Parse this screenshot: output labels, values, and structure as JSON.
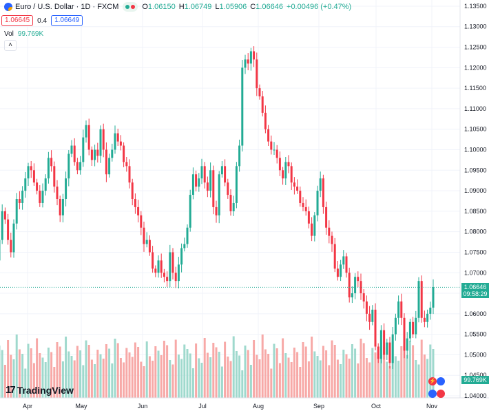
{
  "header": {
    "symbol": "Euro / U.S. Dollar · 1D · FXCM",
    "open_label": "O",
    "open": "1.06150",
    "high_label": "H",
    "high": "1.06749",
    "low_label": "L",
    "low": "1.05906",
    "close_label": "C",
    "close": "1.06646",
    "change": "+0.00496 (+0.47%)",
    "sell_price": "1.06645",
    "spread": "0.4",
    "buy_price": "1.06649"
  },
  "volume": {
    "label": "Vol",
    "value": "99.769K"
  },
  "price_tag": {
    "price": "1.06646",
    "countdown": "09:58:29"
  },
  "volume_tag": "99.769K",
  "logo": {
    "text": "TradingView"
  },
  "colors": {
    "up": "#22ab94",
    "down": "#f23645",
    "vol_up": "#9fd9cd",
    "vol_down": "#f7a9a7",
    "grid": "#f0f3fa",
    "axis_text": "#131722",
    "last_line": "#22ab94"
  },
  "chart_data": {
    "type": "candlestick",
    "x_axis_ticks": [
      "Apr",
      "May",
      "Jun",
      "Jul",
      "Aug",
      "Sep",
      "Oct",
      "Nov"
    ],
    "y_axis_ticks": [
      "1.13500",
      "1.13000",
      "1.12500",
      "1.12000",
      "1.11500",
      "1.11000",
      "1.10500",
      "1.10000",
      "1.09500",
      "1.09000",
      "1.08500",
      "1.08000",
      "1.07500",
      "1.07000",
      "1.06500",
      "1.06000",
      "1.05500",
      "1.05000",
      "1.04500",
      "1.04000"
    ],
    "ylim": [
      1.0395,
      1.1365
    ],
    "closes": [
      1.073,
      1.078,
      1.085,
      1.083,
      1.078,
      1.075,
      1.082,
      1.088,
      1.087,
      1.09,
      1.093,
      1.096,
      1.095,
      1.092,
      1.09,
      1.087,
      1.09,
      1.093,
      1.098,
      1.096,
      1.091,
      1.088,
      1.084,
      1.088,
      1.093,
      1.099,
      1.101,
      1.097,
      1.095,
      1.097,
      1.103,
      1.106,
      1.1,
      1.0975,
      1.1,
      1.0985,
      1.105,
      1.1,
      1.094,
      1.098,
      1.1,
      1.104,
      1.102,
      1.101,
      1.097,
      1.096,
      1.092,
      1.088,
      1.086,
      1.084,
      1.081,
      1.077,
      1.078,
      1.075,
      1.071,
      1.07,
      1.073,
      1.07,
      1.069,
      1.068,
      1.075,
      1.07,
      1.068,
      1.072,
      1.076,
      1.077,
      1.081,
      1.089,
      1.094,
      1.091,
      1.093,
      1.096,
      1.092,
      1.09,
      1.095,
      1.086,
      1.084,
      1.094,
      1.096,
      1.092,
      1.089,
      1.085,
      1.087,
      1.096,
      1.101,
      1.12,
      1.122,
      1.121,
      1.124,
      1.122,
      1.115,
      1.113,
      1.109,
      1.105,
      1.102,
      1.1,
      1.1,
      1.098,
      1.095,
      1.093,
      1.097,
      1.096,
      1.092,
      1.091,
      1.09,
      1.087,
      1.086,
      1.085,
      1.082,
      1.079,
      1.084,
      1.09,
      1.093,
      1.086,
      1.081,
      1.079,
      1.077,
      1.071,
      1.069,
      1.072,
      1.074,
      1.07,
      1.064,
      1.065,
      1.069,
      1.068,
      1.065,
      1.063,
      1.06,
      1.058,
      1.061,
      1.052,
      1.049,
      1.056,
      1.05,
      1.053,
      1.048,
      1.055,
      1.059,
      1.063,
      1.059,
      1.051,
      1.054,
      1.058,
      1.055,
      1.059,
      1.068,
      1.059,
      1.058,
      1.06,
      1.0615,
      1.0665
    ]
  }
}
